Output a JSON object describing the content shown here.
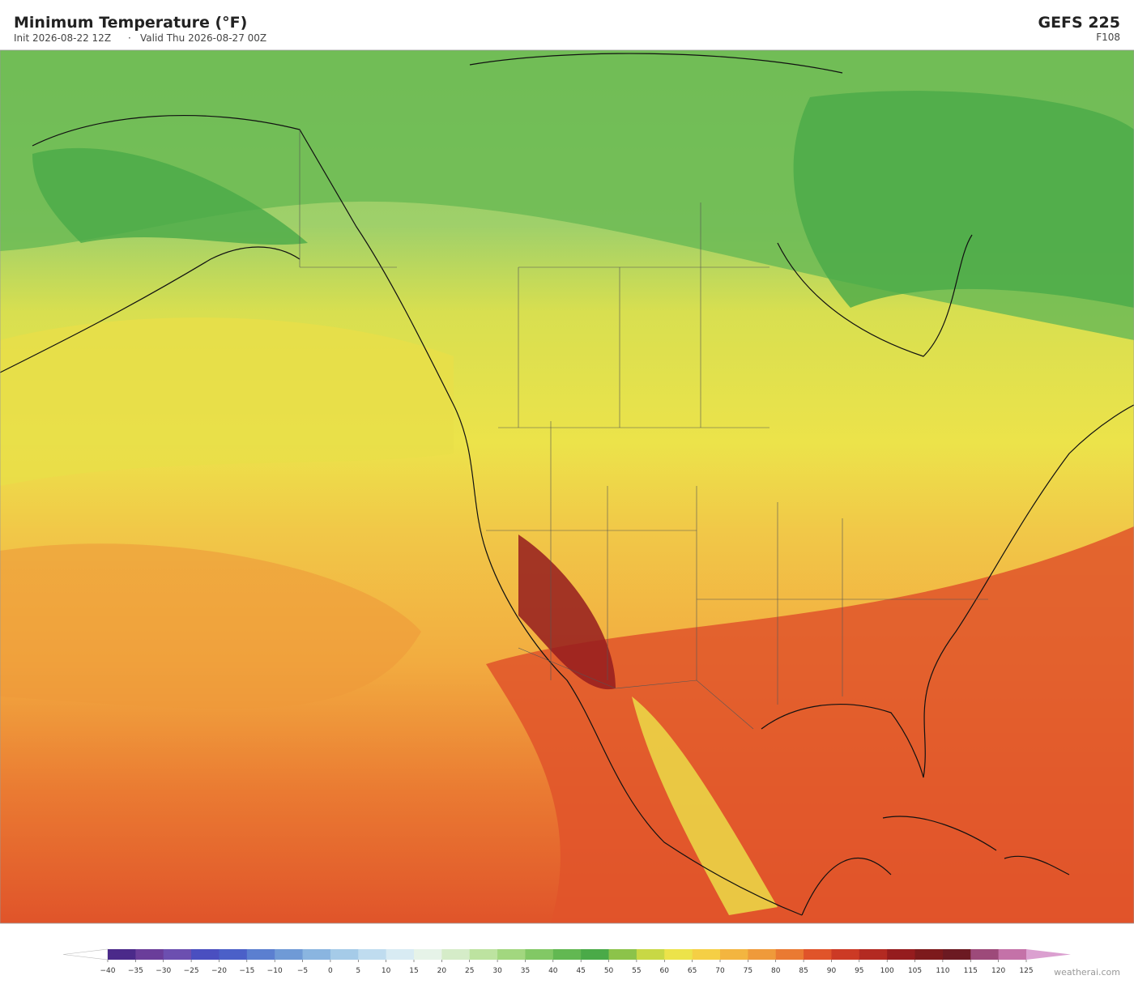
{
  "header": {
    "title": "Minimum Temperature  (°F)",
    "init": "Init 2026-08-22 12Z",
    "separator": "·",
    "valid": "Valid Thu 2026-08-27 00Z",
    "model": "GEFS  225",
    "forecast_hour": "F108"
  },
  "colorbar": {
    "ticks": [
      "−40",
      "−35",
      "−30",
      "−25",
      "−20",
      "−15",
      "−10",
      "−5",
      "0",
      "5",
      "10",
      "15",
      "20",
      "25",
      "30",
      "35",
      "40",
      "45",
      "50",
      "55",
      "60",
      "65",
      "70",
      "75",
      "80",
      "85",
      "90",
      "95",
      "100",
      "105",
      "110",
      "115",
      "120",
      "125"
    ],
    "colors": [
      "#4b2a8a",
      "#6a3d9a",
      "#6c4fb0",
      "#4a4fc0",
      "#4b60c8",
      "#5b7fd0",
      "#6f9ad6",
      "#8ab5e0",
      "#a5cbe8",
      "#bfdcef",
      "#d8ebf3",
      "#e6f3e8",
      "#d5ecc8",
      "#bde3a0",
      "#a2d77f",
      "#82c865",
      "#62b852",
      "#4aaa48",
      "#8cc34a",
      "#c8d845",
      "#ece34a",
      "#f5cf45",
      "#f3b540",
      "#ef9a3a",
      "#ea7a32",
      "#e0542a",
      "#cc3a25",
      "#b32a22",
      "#951c1e",
      "#7d1a1c",
      "#6c1a22",
      "#9d4a7a",
      "#c472a8"
    ]
  },
  "footer": {
    "credit": "weatherai.com"
  }
}
